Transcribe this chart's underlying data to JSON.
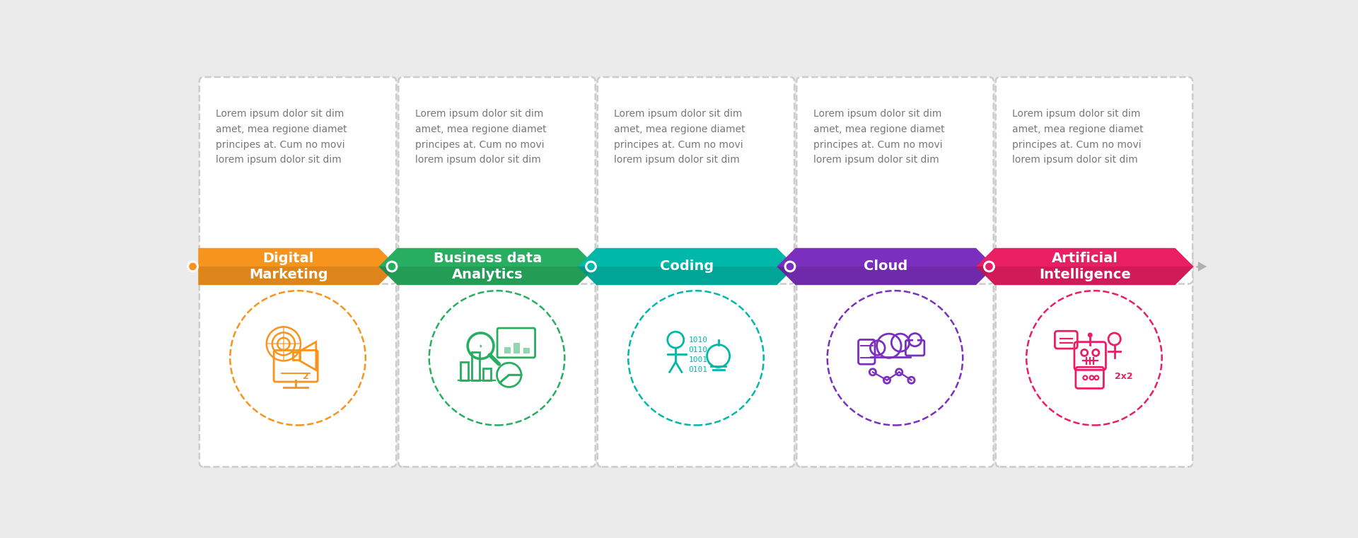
{
  "background_color": "#ebebeb",
  "steps": [
    {
      "title": "Digital\nMarketing",
      "color": "#F7941D",
      "dot_color": "#F7941D",
      "icon_color": "#F7941D",
      "text": "Lorem ipsum dolor sit dim\namet, mea regione diamet\nprincipes at. Cum no movi\nlorem ipsum dolor sit dim"
    },
    {
      "title": "Business data\nAnalytics",
      "color": "#27AE60",
      "dot_color": "#27AE60",
      "icon_color": "#27AE60",
      "text": "Lorem ipsum dolor sit dim\namet, mea regione diamet\nprincipes at. Cum no movi\nlorem ipsum dolor sit dim"
    },
    {
      "title": "Coding",
      "color": "#00B8A9",
      "dot_color": "#00B8A9",
      "icon_color": "#00B8A9",
      "text": "Lorem ipsum dolor sit dim\namet, mea regione diamet\nprincipes at. Cum no movi\nlorem ipsum dolor sit dim"
    },
    {
      "title": "Cloud",
      "color": "#7B2FBE",
      "dot_color": "#7B2FBE",
      "icon_color": "#7B2FBE",
      "text": "Lorem ipsum dolor sit dim\namet, mea regione diamet\nprincipes at. Cum no movi\nlorem ipsum dolor sit dim"
    },
    {
      "title": "Artificial\nIntelligence",
      "color": "#E91E63",
      "dot_color": "#E91E63",
      "icon_color": "#E91E63",
      "text": "Lorem ipsum dolor sit dim\namet, mea regione diamet\nprincipes at. Cum no movi\nlorem ipsum dolor sit dim"
    }
  ],
  "dot_line_color": "#b0b0b0",
  "text_color": "#777777",
  "white": "#ffffff",
  "card_bg": "#ffffff",
  "card_edge": "#cccccc"
}
